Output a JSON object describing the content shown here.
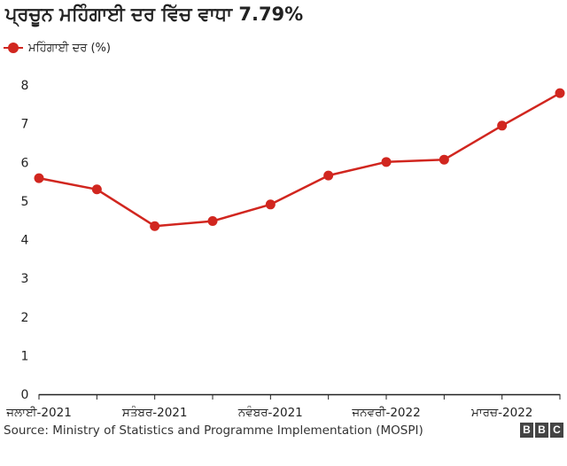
{
  "title": "ਪ੍ਰਚੂਨ ਮਹਿੰਗਾਈ ਦਰ ਵਿੱਚ ਵਾਧਾ 7.79%",
  "legend": {
    "label": "ਮਹਿੰਗਾਈ ਦਰ (%)"
  },
  "source": "Source: Ministry of Statistics and Programme Implementation (MOSPI)",
  "branding": {
    "letters": [
      "B",
      "B",
      "C"
    ]
  },
  "colors": {
    "series": "#d1261f",
    "axis": "#222222",
    "text": "#222222"
  },
  "chart_data": {
    "type": "line",
    "title": "ਪ੍ਰਚੂਨ ਮਹਿੰਗਾਈ ਦਰ ਵਿੱਚ ਵਾਧਾ 7.79%",
    "xlabel": "",
    "ylabel": "",
    "ylim": [
      0,
      8
    ],
    "yticks": [
      0,
      1,
      2,
      3,
      4,
      5,
      6,
      7,
      8
    ],
    "grid": false,
    "legend_position": "top-left",
    "x_tick_labels": [
      {
        "index": 0,
        "label": "ਜੁਲਾਈ-2021"
      },
      {
        "index": 2,
        "label": "ਸਤੰਬਰ-2021"
      },
      {
        "index": 4,
        "label": "ਨਵੰਬਰ-2021"
      },
      {
        "index": 6,
        "label": "ਜਨਵਰੀ-2022"
      },
      {
        "index": 8,
        "label": "ਮਾਰਚ-2022"
      }
    ],
    "series": [
      {
        "name": "ਮਹਿੰਗਾਈ ਦਰ (%)",
        "values": [
          5.59,
          5.3,
          4.35,
          4.48,
          4.91,
          5.66,
          6.01,
          6.07,
          6.95,
          7.79
        ]
      }
    ]
  }
}
